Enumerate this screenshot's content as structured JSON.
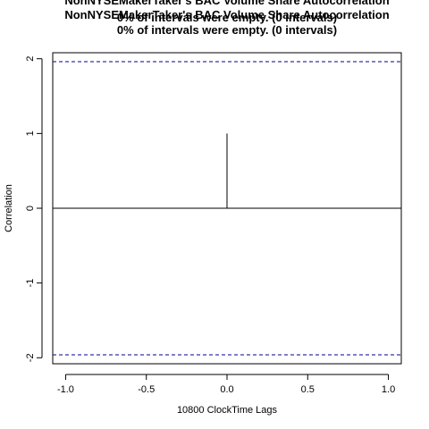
{
  "chart_data": {
    "type": "line",
    "title_lines": [
      "NonNYSEMakerTaker's BAC Volume Share Autocorrelation",
      "0% of intervals were empty. (0 intervals)"
    ],
    "xlabel": "10800 ClockTime Lags",
    "ylabel": "Correlation",
    "xlim": [
      -1.08,
      1.08
    ],
    "ylim": [
      -2.08,
      2.08
    ],
    "x_ticks": [
      -1.0,
      -0.5,
      0.0,
      0.5,
      1.0
    ],
    "x_tick_labels": [
      "-1.0",
      "-0.5",
      "0.0",
      "0.5",
      "1.0"
    ],
    "y_ticks": [
      -2,
      -1,
      0,
      1,
      2
    ],
    "y_tick_labels": [
      "-2",
      "-1",
      "0",
      "1",
      "2"
    ],
    "spikes": [
      {
        "lag": 0,
        "value": 1
      }
    ],
    "zero_line": 0,
    "confidence_bounds": [
      1.96,
      -1.96
    ],
    "bound_color": "#00008b",
    "line_color": "#000000"
  }
}
